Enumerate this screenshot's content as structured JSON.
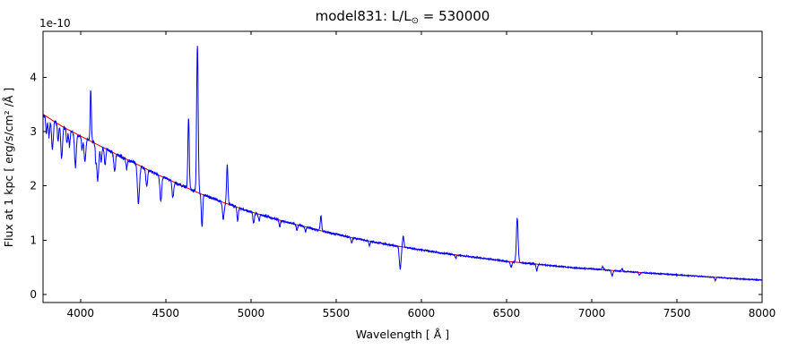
{
  "chart_data": {
    "type": "line",
    "title": {
      "prefix": "model831: L/L",
      "sub": "⊙",
      "suffix": " = 530000"
    },
    "xlabel": "Wavelength [ Å ]",
    "ylabel": "Flux at 1 kpc [ erg/s/cm² /Å ]",
    "offset_label": "1e-10",
    "xlim": [
      3780,
      8000
    ],
    "ylim": [
      -0.15,
      4.85
    ],
    "xticks": [
      4000,
      4500,
      5000,
      5500,
      6000,
      6500,
      7000,
      7500,
      8000
    ],
    "yticks": [
      0,
      1,
      2,
      3,
      4
    ],
    "grid": false,
    "legend": "none",
    "series": [
      {
        "name": "observed-spectrum",
        "color": "#0000ff",
        "style": "solid"
      },
      {
        "name": "continuum-fit",
        "color": "#ff0000",
        "style": "solid"
      }
    ],
    "continuum_units": "1e-10 erg/s/cm2/A at 1 kpc",
    "continuum": [
      [
        3780,
        3.32
      ],
      [
        3850,
        3.18
      ],
      [
        3900,
        3.08
      ],
      [
        3950,
        3.0
      ],
      [
        4000,
        2.92
      ],
      [
        4050,
        2.84
      ],
      [
        4100,
        2.76
      ],
      [
        4150,
        2.68
      ],
      [
        4200,
        2.6
      ],
      [
        4250,
        2.52
      ],
      [
        4300,
        2.45
      ],
      [
        4350,
        2.37
      ],
      [
        4400,
        2.29
      ],
      [
        4450,
        2.21
      ],
      [
        4500,
        2.14
      ],
      [
        4550,
        2.07
      ],
      [
        4600,
        2.0
      ],
      [
        4650,
        1.93
      ],
      [
        4700,
        1.86
      ],
      [
        4750,
        1.8
      ],
      [
        4800,
        1.74
      ],
      [
        4850,
        1.68
      ],
      [
        4900,
        1.63
      ],
      [
        4950,
        1.57
      ],
      [
        5000,
        1.52
      ],
      [
        5100,
        1.43
      ],
      [
        5200,
        1.34
      ],
      [
        5300,
        1.26
      ],
      [
        5400,
        1.18
      ],
      [
        5500,
        1.11
      ],
      [
        5600,
        1.04
      ],
      [
        5700,
        0.98
      ],
      [
        5800,
        0.92
      ],
      [
        5900,
        0.87
      ],
      [
        6000,
        0.82
      ],
      [
        6100,
        0.77
      ],
      [
        6200,
        0.73
      ],
      [
        6300,
        0.69
      ],
      [
        6400,
        0.65
      ],
      [
        6500,
        0.61
      ],
      [
        6600,
        0.58
      ],
      [
        6700,
        0.55
      ],
      [
        6800,
        0.52
      ],
      [
        6900,
        0.49
      ],
      [
        7000,
        0.47
      ],
      [
        7100,
        0.445
      ],
      [
        7200,
        0.42
      ],
      [
        7300,
        0.4
      ],
      [
        7400,
        0.38
      ],
      [
        7500,
        0.36
      ],
      [
        7600,
        0.34
      ],
      [
        7700,
        0.32
      ],
      [
        7800,
        0.3
      ],
      [
        7900,
        0.28
      ],
      [
        8000,
        0.265
      ]
    ],
    "features_format": "[center_angstrom, amplitude_1e-10 (+emission/-absorption), sigma_angstrom]",
    "features": [
      [
        4060,
        0.95,
        3.5
      ],
      [
        4634,
        1.3,
        4.0
      ],
      [
        4686,
        2.72,
        4.5
      ],
      [
        4861,
        0.72,
        4.0
      ],
      [
        5411,
        0.28,
        4.0
      ],
      [
        5894,
        0.2,
        4.0
      ],
      [
        6563,
        0.82,
        5.0
      ],
      [
        7065,
        0.06,
        4.0
      ],
      [
        7178,
        0.05,
        4.0
      ],
      [
        3800,
        -0.3,
        4.0
      ],
      [
        3815,
        -0.35,
        4.0
      ],
      [
        3835,
        -0.55,
        5.0
      ],
      [
        3868,
        -0.3,
        4.0
      ],
      [
        3889,
        -0.6,
        5.0
      ],
      [
        3920,
        -0.25,
        4.0
      ],
      [
        3935,
        -0.3,
        4.0
      ],
      [
        3970,
        -0.62,
        5.0
      ],
      [
        4009,
        -0.25,
        4.0
      ],
      [
        4026,
        -0.45,
        5.0
      ],
      [
        4089,
        -0.25,
        3.0
      ],
      [
        4101,
        -0.65,
        6.0
      ],
      [
        4121,
        -0.28,
        4.0
      ],
      [
        4144,
        -0.3,
        4.0
      ],
      [
        4200,
        -0.32,
        5.0
      ],
      [
        4271,
        -0.18,
        4.0
      ],
      [
        4340,
        -0.7,
        6.0
      ],
      [
        4388,
        -0.32,
        5.0
      ],
      [
        4471,
        -0.48,
        5.0
      ],
      [
        4542,
        -0.3,
        5.0
      ],
      [
        4713,
        -0.6,
        4.0
      ],
      [
        4838,
        -0.3,
        5.0
      ],
      [
        4922,
        -0.25,
        4.0
      ],
      [
        5016,
        -0.2,
        4.0
      ],
      [
        5048,
        -0.12,
        4.0
      ],
      [
        5169,
        -0.12,
        4.0
      ],
      [
        5270,
        -0.1,
        4.0
      ],
      [
        5320,
        -0.08,
        4.0
      ],
      [
        5592,
        -0.1,
        4.0
      ],
      [
        5696,
        -0.08,
        4.0
      ],
      [
        5876,
        -0.42,
        5.0
      ],
      [
        6203,
        -0.06,
        4.0
      ],
      [
        6527,
        -0.1,
        5.0
      ],
      [
        6678,
        -0.12,
        4.0
      ],
      [
        7120,
        -0.09,
        5.0
      ],
      [
        7280,
        -0.05,
        4.0
      ],
      [
        7726,
        -0.06,
        4.0
      ]
    ],
    "noise_amplitude": 0.02,
    "sample_step": 1.5
  }
}
